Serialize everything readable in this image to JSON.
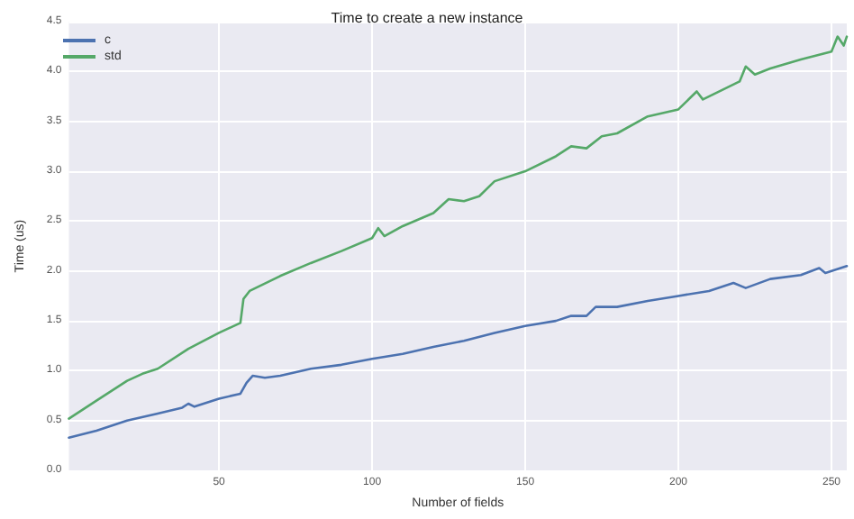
{
  "chart_data": {
    "type": "line",
    "title": "Time to create a new instance",
    "xlabel": "Number of fields",
    "ylabel": "Time (us)",
    "xlim": [
      1,
      255
    ],
    "xticks": [
      50,
      100,
      150,
      200,
      250
    ],
    "ylim": [
      0,
      4.5
    ],
    "yticks": [
      {
        "value": 0,
        "label": "0.0"
      },
      0.5,
      {
        "value": 1,
        "label": "1.0"
      },
      1.5,
      {
        "value": 2,
        "label": "2.0"
      },
      2.5,
      {
        "value": 3,
        "label": "3.0"
      },
      3.5,
      {
        "value": 4,
        "label": "4.0"
      },
      4.5
    ],
    "grid": true,
    "legend": "top left",
    "marker": "none",
    "line_style": "solid",
    "series": [
      {
        "name": "c",
        "color": "#4c72b0",
        "x": [
          1,
          10,
          20,
          30,
          38,
          40,
          42,
          50,
          57,
          59,
          61,
          65,
          70,
          80,
          90,
          100,
          110,
          120,
          130,
          140,
          150,
          160,
          165,
          170,
          173,
          180,
          190,
          200,
          210,
          218,
          222,
          230,
          240,
          246,
          248,
          255
        ],
        "values": [
          0.33,
          0.4,
          0.5,
          0.57,
          0.63,
          0.67,
          0.64,
          0.72,
          0.77,
          0.88,
          0.95,
          0.93,
          0.95,
          1.02,
          1.06,
          1.12,
          1.17,
          1.24,
          1.3,
          1.38,
          1.45,
          1.5,
          1.55,
          1.55,
          1.64,
          1.64,
          1.7,
          1.75,
          1.8,
          1.88,
          1.83,
          1.92,
          1.96,
          2.03,
          1.98,
          2.05
        ]
      },
      {
        "name": "std",
        "color": "#55a868",
        "x": [
          1,
          10,
          20,
          25,
          30,
          40,
          50,
          57,
          58,
          60,
          70,
          80,
          90,
          100,
          102,
          104,
          110,
          120,
          125,
          130,
          135,
          140,
          150,
          160,
          165,
          170,
          175,
          180,
          190,
          200,
          206,
          208,
          220,
          222,
          225,
          230,
          240,
          250,
          252,
          254,
          255
        ],
        "values": [
          0.52,
          0.7,
          0.9,
          0.97,
          1.02,
          1.22,
          1.38,
          1.48,
          1.72,
          1.8,
          1.95,
          2.08,
          2.2,
          2.33,
          2.43,
          2.35,
          2.45,
          2.58,
          2.72,
          2.7,
          2.75,
          2.9,
          3.0,
          3.15,
          3.25,
          3.23,
          3.35,
          3.38,
          3.55,
          3.62,
          3.8,
          3.72,
          3.9,
          4.05,
          3.97,
          4.03,
          4.12,
          4.2,
          4.35,
          4.26,
          4.35
        ]
      }
    ]
  }
}
